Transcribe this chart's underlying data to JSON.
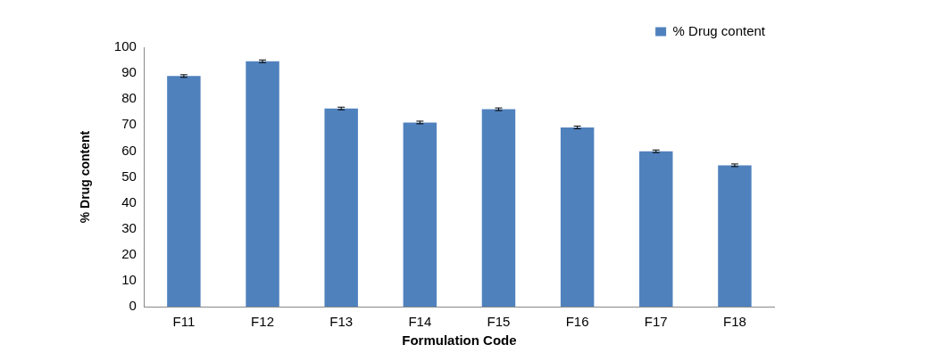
{
  "chart_data": {
    "type": "bar",
    "xlabel": "Formulation Code",
    "ylabel": "% Drug content",
    "categories": [
      "F11",
      "F12",
      "F13",
      "F14",
      "F15",
      "F16",
      "F17",
      "F18"
    ],
    "series": [
      {
        "name": "% Drug content",
        "color": "#4f81bd",
        "values": [
          88.9,
          94.6,
          76.4,
          71.0,
          76.1,
          69.1,
          59.9,
          54.5
        ],
        "errors": [
          0.5,
          0.5,
          0.5,
          0.5,
          0.5,
          0.5,
          0.5,
          0.5
        ]
      }
    ],
    "ylim": [
      0,
      100
    ],
    "yticks": [
      0,
      10,
      20,
      30,
      40,
      50,
      60,
      70,
      80,
      90,
      100
    ],
    "grid": false,
    "legend": "top right"
  }
}
